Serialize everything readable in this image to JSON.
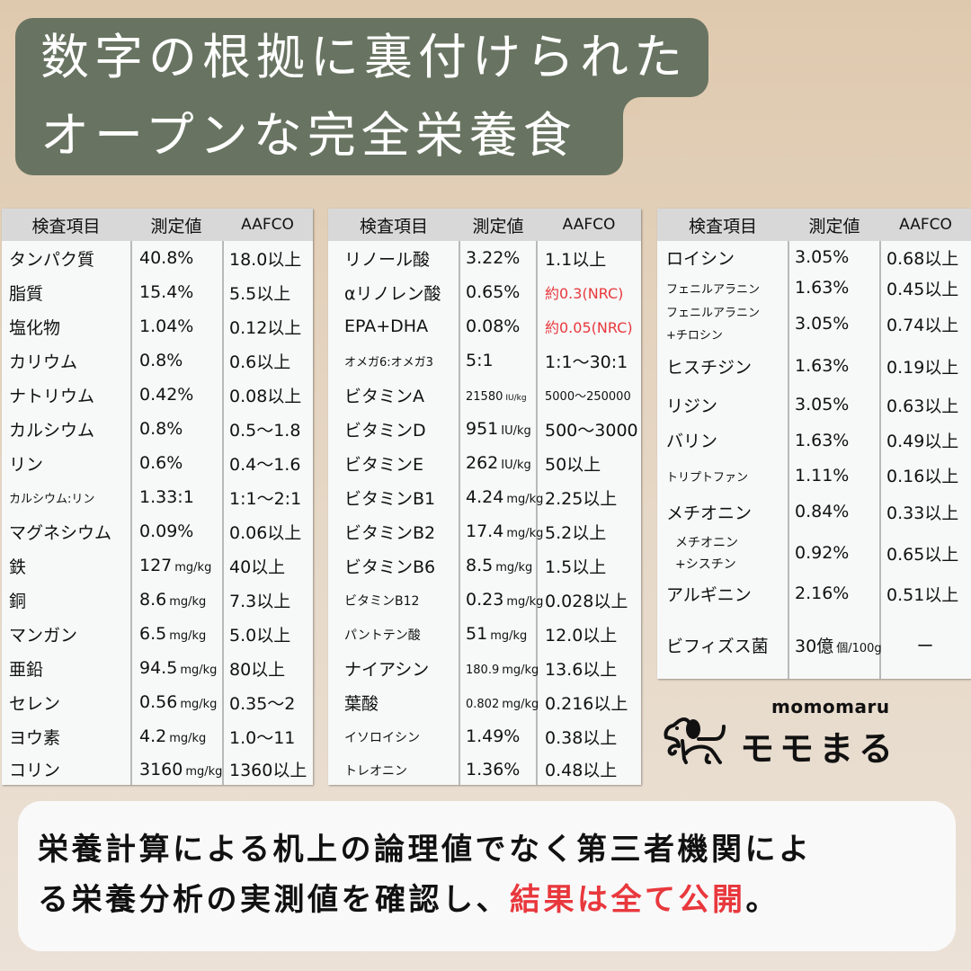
{
  "title": {
    "line1": "数字の根拠に裏付けられた",
    "line2": "オープンな完全栄養食"
  },
  "colors": {
    "title_bg": "#687461",
    "background": "#e3d2bd",
    "accent_red": "#e8383d",
    "table_header_bg": "#d8d8d8"
  },
  "headers": {
    "item": "検査項目",
    "measured": "測定値",
    "aafco": "AAFCO"
  },
  "table1": [
    {
      "name": "タンパク質",
      "value": "40.8%",
      "unit": "",
      "aafco": "18.0以上"
    },
    {
      "name": "脂質",
      "value": "15.4%",
      "unit": "",
      "aafco": "5.5以上"
    },
    {
      "name": "塩化物",
      "value": "1.04%",
      "unit": "",
      "aafco": "0.12以上"
    },
    {
      "name": "カリウム",
      "value": "0.8%",
      "unit": "",
      "aafco": "0.6以上"
    },
    {
      "name": "ナトリウム",
      "value": "0.42%",
      "unit": "",
      "aafco": "0.08以上"
    },
    {
      "name": "カルシウム",
      "value": "0.8%",
      "unit": "",
      "aafco": "0.5〜1.8"
    },
    {
      "name": "リン",
      "value": "0.6%",
      "unit": "",
      "aafco": "0.4〜1.6"
    },
    {
      "name": "カルシウム:リン",
      "value": "1.33:1",
      "unit": "",
      "aafco": "1:1〜2:1"
    },
    {
      "name": "マグネシウム",
      "value": "0.09%",
      "unit": "",
      "aafco": "0.06以上"
    },
    {
      "name": "鉄",
      "value": "127",
      "unit": "mg/kg",
      "aafco": "40以上"
    },
    {
      "name": "銅",
      "value": "8.6",
      "unit": "mg/kg",
      "aafco": "7.3以上"
    },
    {
      "name": "マンガン",
      "value": "6.5",
      "unit": "mg/kg",
      "aafco": "5.0以上"
    },
    {
      "name": "亜鉛",
      "value": "94.5",
      "unit": "mg/kg",
      "aafco": "80以上"
    },
    {
      "name": "セレン",
      "value": "0.56",
      "unit": "mg/kg",
      "aafco": "0.35〜2"
    },
    {
      "name": "ヨウ素",
      "value": "4.2",
      "unit": "mg/kg",
      "aafco": "1.0〜11"
    },
    {
      "name": "コリン",
      "value": "3160",
      "unit": "mg/kg",
      "aafco": "1360以上"
    }
  ],
  "table2": [
    {
      "name": "リノール酸",
      "value": "3.22%",
      "unit": "",
      "aafco": "1.1以上"
    },
    {
      "name": "αリノレン酸",
      "value": "0.65%",
      "unit": "",
      "aafco": "約0.3(NRC)"
    },
    {
      "name": "EPA+DHA",
      "value": "0.08%",
      "unit": "",
      "aafco": "約0.05(NRC)"
    },
    {
      "name": "オメガ6:オメガ3",
      "value": "5:1",
      "unit": "",
      "aafco": "1:1〜30:1"
    },
    {
      "name": "ビタミンA",
      "value": "21580",
      "unit": "IU/kg",
      "aafco": "5000〜250000"
    },
    {
      "name": "ビタミンD",
      "value": "951",
      "unit": "IU/kg",
      "aafco": "500〜3000"
    },
    {
      "name": "ビタミンE",
      "value": "262",
      "unit": "IU/kg",
      "aafco": "50以上"
    },
    {
      "name": "ビタミンB1",
      "value": "4.24",
      "unit": "mg/kg",
      "aafco": "2.25以上"
    },
    {
      "name": "ビタミンB2",
      "value": "17.4",
      "unit": "mg/kg",
      "aafco": "5.2以上"
    },
    {
      "name": "ビタミンB6",
      "value": "8.5",
      "unit": "mg/kg",
      "aafco": "1.5以上"
    },
    {
      "name": "ビタミンB12",
      "value": "0.23",
      "unit": "mg/kg",
      "aafco": "0.028以上"
    },
    {
      "name": "パントテン酸",
      "value": "51",
      "unit": "mg/kg",
      "aafco": "12.0以上"
    },
    {
      "name": "ナイアシン",
      "value": "180.9",
      "unit": "mg/kg",
      "aafco": "13.6以上"
    },
    {
      "name": "葉酸",
      "value": "0.802",
      "unit": "mg/kg",
      "aafco": "0.216以上"
    },
    {
      "name": "イソロイシン",
      "value": "1.49%",
      "unit": "",
      "aafco": "0.38以上"
    },
    {
      "name": "トレオニン",
      "value": "1.36%",
      "unit": "",
      "aafco": "0.48以上"
    }
  ],
  "table3": [
    {
      "name": "ロイシン",
      "value": "3.05%",
      "unit": "",
      "aafco": "0.68以上"
    },
    {
      "name": "フェニルアラニン",
      "value": "1.63%",
      "unit": "",
      "aafco": "0.45以上"
    },
    {
      "name": "フェニルアラニン",
      "name2": "+チロシン",
      "value": "3.05%",
      "unit": "",
      "aafco": "0.74以上"
    },
    {
      "name": "ヒスチジン",
      "value": "1.63%",
      "unit": "",
      "aafco": "0.19以上"
    },
    {
      "name": "リジン",
      "value": "3.05%",
      "unit": "",
      "aafco": "0.63以上"
    },
    {
      "name": "バリン",
      "value": "1.63%",
      "unit": "",
      "aafco": "0.49以上"
    },
    {
      "name": "トリプトファン",
      "value": "1.11%",
      "unit": "",
      "aafco": "0.16以上"
    },
    {
      "name": "メチオニン",
      "value": "0.84%",
      "unit": "",
      "aafco": "0.33以上"
    },
    {
      "name": "メチオニン",
      "name2": "+シスチン",
      "value": "0.92%",
      "unit": "",
      "aafco": "0.65以上"
    },
    {
      "name": "アルギニン",
      "value": "2.16%",
      "unit": "",
      "aafco": "0.51以上"
    },
    {
      "name": "ビフィズス菌",
      "value": "30億",
      "unit": "個/100g",
      "aafco": "ー"
    }
  ],
  "logo": {
    "en": "momomaru",
    "jp": "モモまる",
    "icon": "dog-icon"
  },
  "message": {
    "line1": "栄養計算による机上の論理値でなく第三者機関によ",
    "line2_prefix": "る栄養分析の実測値を確認し、",
    "line2_highlight": "結果は全て公開",
    "line2_suffix": "。"
  }
}
